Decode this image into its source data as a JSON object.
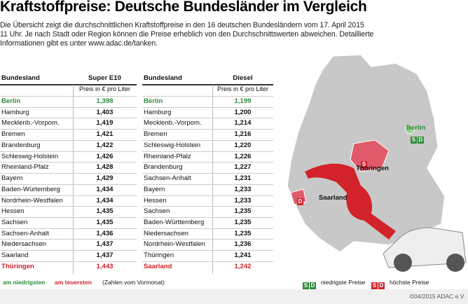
{
  "header": {
    "title": "Kraftstoffpreise: Deutsche Bundesländer im Vergleich",
    "intro": [
      "Die Übersicht zeigt die durchschnittlichen Kraftstoffpreise in den 16 deutschen Bundesländern vom 17. April 2015",
      "11 Uhr. Je nach Stadt oder Region können die Preise erheblich von den Durchschnittswerten abweichen. Detaillierte",
      "Informationen gibt es unter www.adac.de/tanken."
    ]
  },
  "tables": [
    {
      "columns": [
        "Bundesland",
        "Super E10"
      ],
      "unit": "Preis in € pro Liter",
      "rows": [
        [
          "Berlin",
          "1,398"
        ],
        [
          "Hamburg",
          "1,403"
        ],
        [
          "Mecklenb.-Vorpom.",
          "1,419"
        ],
        [
          "Bremen",
          "1,421"
        ],
        [
          "Brandenburg",
          "1,422"
        ],
        [
          "Schleswig-Holstein",
          "1,426"
        ],
        [
          "Rheinland-Pfalz",
          "1,428"
        ],
        [
          "Bayern",
          "1,429"
        ],
        [
          "Baden-Würtemberg",
          "1,434"
        ],
        [
          "Nordrhein-Westfalen",
          "1,434"
        ],
        [
          "Hessen",
          "1,435"
        ],
        [
          "Sachsen",
          "1,435"
        ],
        [
          "Sachsen-Anhalt",
          "1,436"
        ],
        [
          "Niedersachsen",
          "1,437"
        ],
        [
          "Saarland",
          "1,437"
        ],
        [
          "Thüringen",
          "1,443"
        ]
      ]
    },
    {
      "columns": [
        "Bundesland",
        "Diesel"
      ],
      "unit": "Preis in € pro Liter",
      "rows": [
        [
          "Berlin",
          "1,199"
        ],
        [
          "Hamburg",
          "1,200"
        ],
        [
          "Mecklenb.-Vorpom.",
          "1,214"
        ],
        [
          "Bremen",
          "1,216"
        ],
        [
          "Schleswig-Holstein",
          "1,220"
        ],
        [
          "Rheinland-Pfalz",
          "1,226"
        ],
        [
          "Brandenburg",
          "1,227"
        ],
        [
          "Sachsen-Anhalt",
          "1,231"
        ],
        [
          "Bayern",
          "1,233"
        ],
        [
          "Hessen",
          "1,233"
        ],
        [
          "Sachsen",
          "1,235"
        ],
        [
          "Baden-Württemberg",
          "1,235"
        ],
        [
          "Niedersachsen",
          "1,235"
        ],
        [
          "Nordrhein-Westfalen",
          "1,236"
        ],
        [
          "Thüringen",
          "1,241"
        ],
        [
          "Saarland",
          "1,242"
        ]
      ]
    }
  ],
  "map": {
    "berlin": {
      "label": "Berlin",
      "badges": [
        "S",
        "D"
      ]
    },
    "thueringen": {
      "label": "Thüringen",
      "badges": [
        "S"
      ]
    },
    "saarland": {
      "label": "Saarland",
      "badges": [
        "D"
      ]
    }
  },
  "legend": {
    "low": "am niedrigsten",
    "high": "am teuersten",
    "note": "(Zahlen vom Vormonat)",
    "badges": [
      "S",
      "D"
    ],
    "low_map": "niedrigste Preise",
    "high_map": "höchste Preise"
  },
  "footer": "©04/2015 ADAC e.V."
}
